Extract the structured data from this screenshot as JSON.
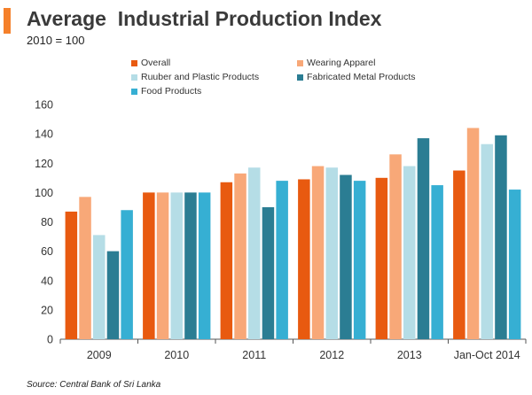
{
  "header": {
    "title": "Average  Industrial Production Index",
    "subtitle": "2010 = 100"
  },
  "source": "Source: Central Bank of Sri Lanka",
  "chart_data": {
    "type": "bar",
    "categories": [
      "2009",
      "2010",
      "2011",
      "2012",
      "2013",
      "Jan-Oct 2014"
    ],
    "ylim": [
      0,
      160
    ],
    "yticks": [
      0,
      20,
      40,
      60,
      80,
      100,
      120,
      140,
      160
    ],
    "grid": false,
    "legend_position": "top",
    "series": [
      {
        "name": "Overall",
        "color": "#e85a10",
        "values": [
          87,
          100,
          107,
          109,
          110,
          115
        ]
      },
      {
        "name": "Wearing Apparel",
        "color": "#f8a878",
        "values": [
          97,
          100,
          113,
          118,
          126,
          144
        ]
      },
      {
        "name": "Ruuber and Plastic Products",
        "color": "#b5dde6",
        "values": [
          71,
          100,
          117,
          117,
          118,
          133
        ]
      },
      {
        "name": "Fabricated Metal Products",
        "color": "#2b7d93",
        "values": [
          60,
          100,
          90,
          112,
          137,
          139
        ]
      },
      {
        "name": "Food Products",
        "color": "#36afd3",
        "values": [
          88,
          100,
          108,
          108,
          105,
          102
        ]
      }
    ]
  }
}
